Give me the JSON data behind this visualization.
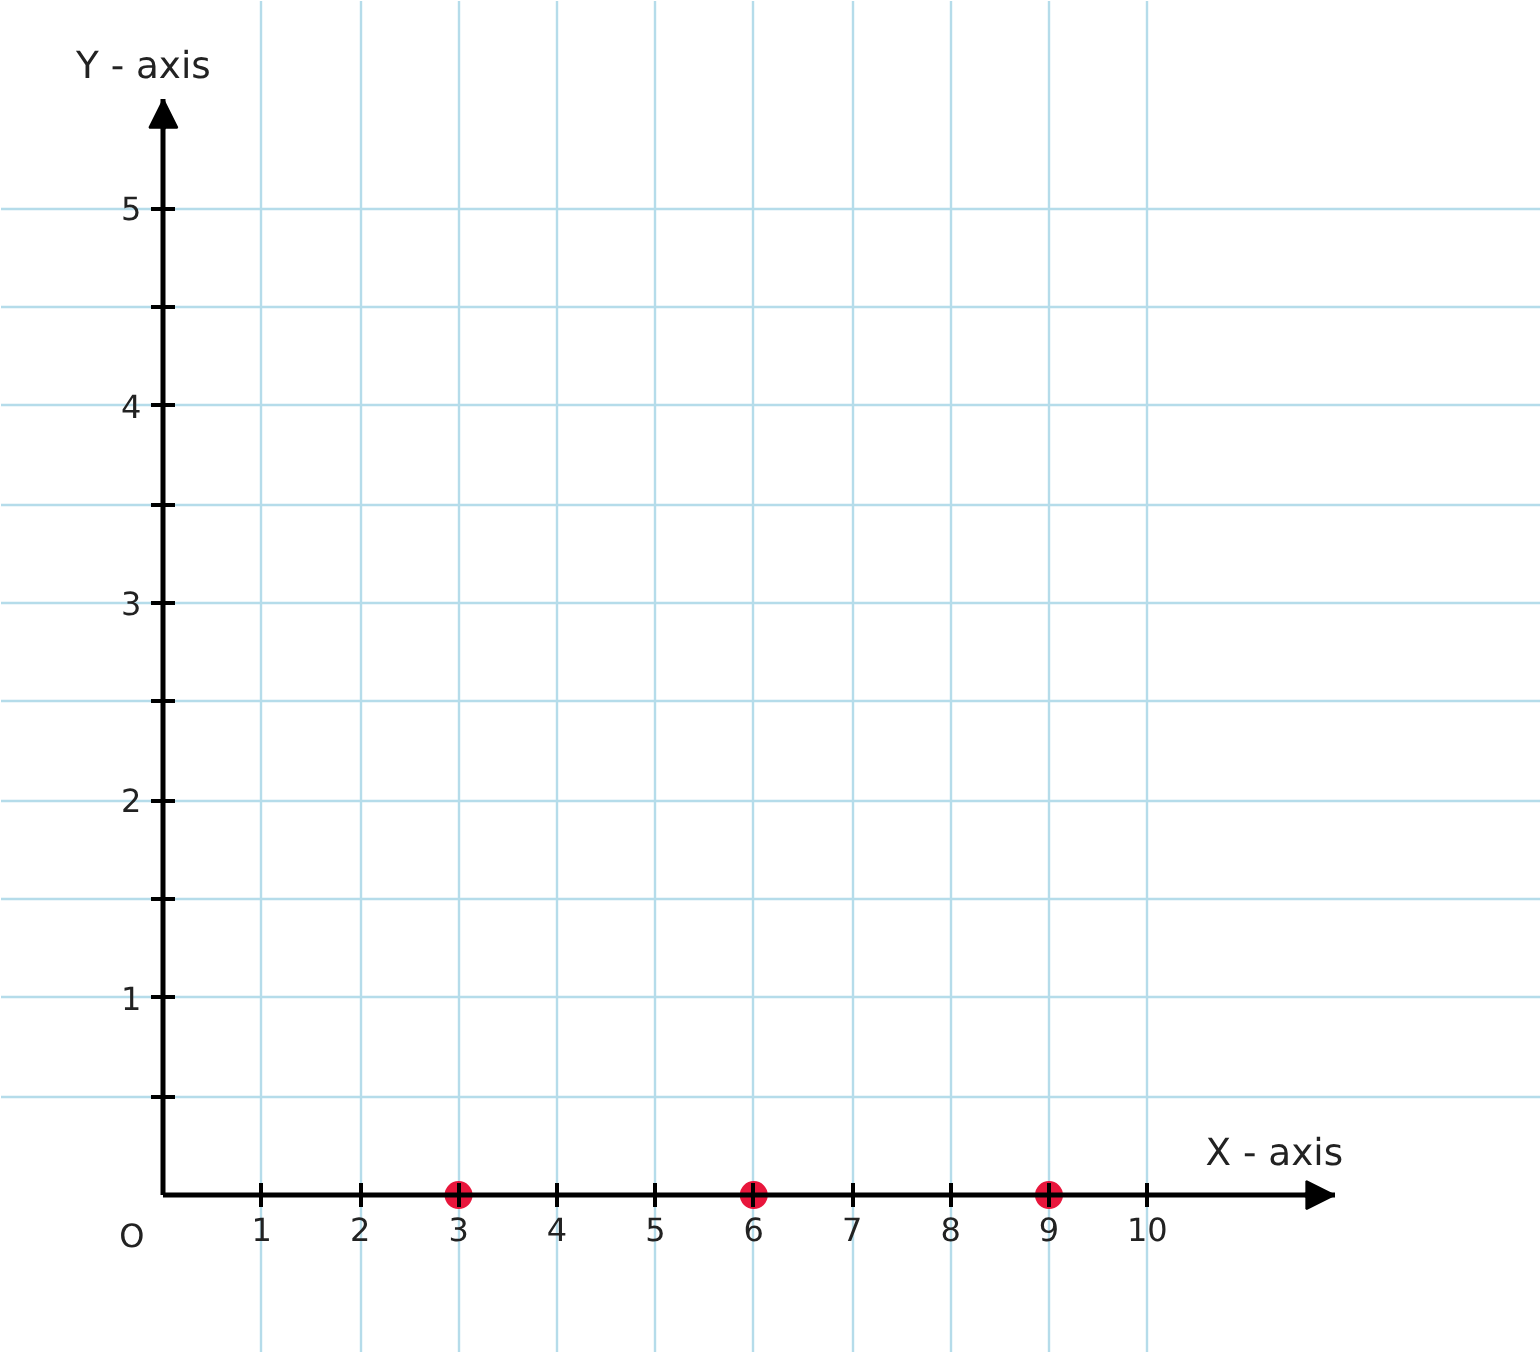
{
  "chart_data": {
    "type": "scatter",
    "xlabel": "X - axis",
    "ylabel": "Y - axis",
    "x": [
      3,
      6,
      9
    ],
    "values": [
      0,
      0,
      0
    ],
    "color": "#e8163c",
    "marker": "circle",
    "xlim": [
      -1.65,
      14
    ],
    "ylim": [
      -0.8,
      6.05
    ],
    "xticks": [
      1,
      2,
      3,
      4,
      5,
      6,
      7,
      8,
      9,
      10
    ],
    "yticks": [
      {
        "value": 0.5,
        "label": null
      },
      1,
      {
        "value": 1.5,
        "label": null
      },
      2,
      {
        "value": 2.5,
        "label": null
      },
      3,
      {
        "value": 3.5,
        "label": null
      },
      4,
      {
        "value": 4.5,
        "label": null
      },
      5
    ],
    "grid": true,
    "annotations": [
      "O"
    ]
  }
}
